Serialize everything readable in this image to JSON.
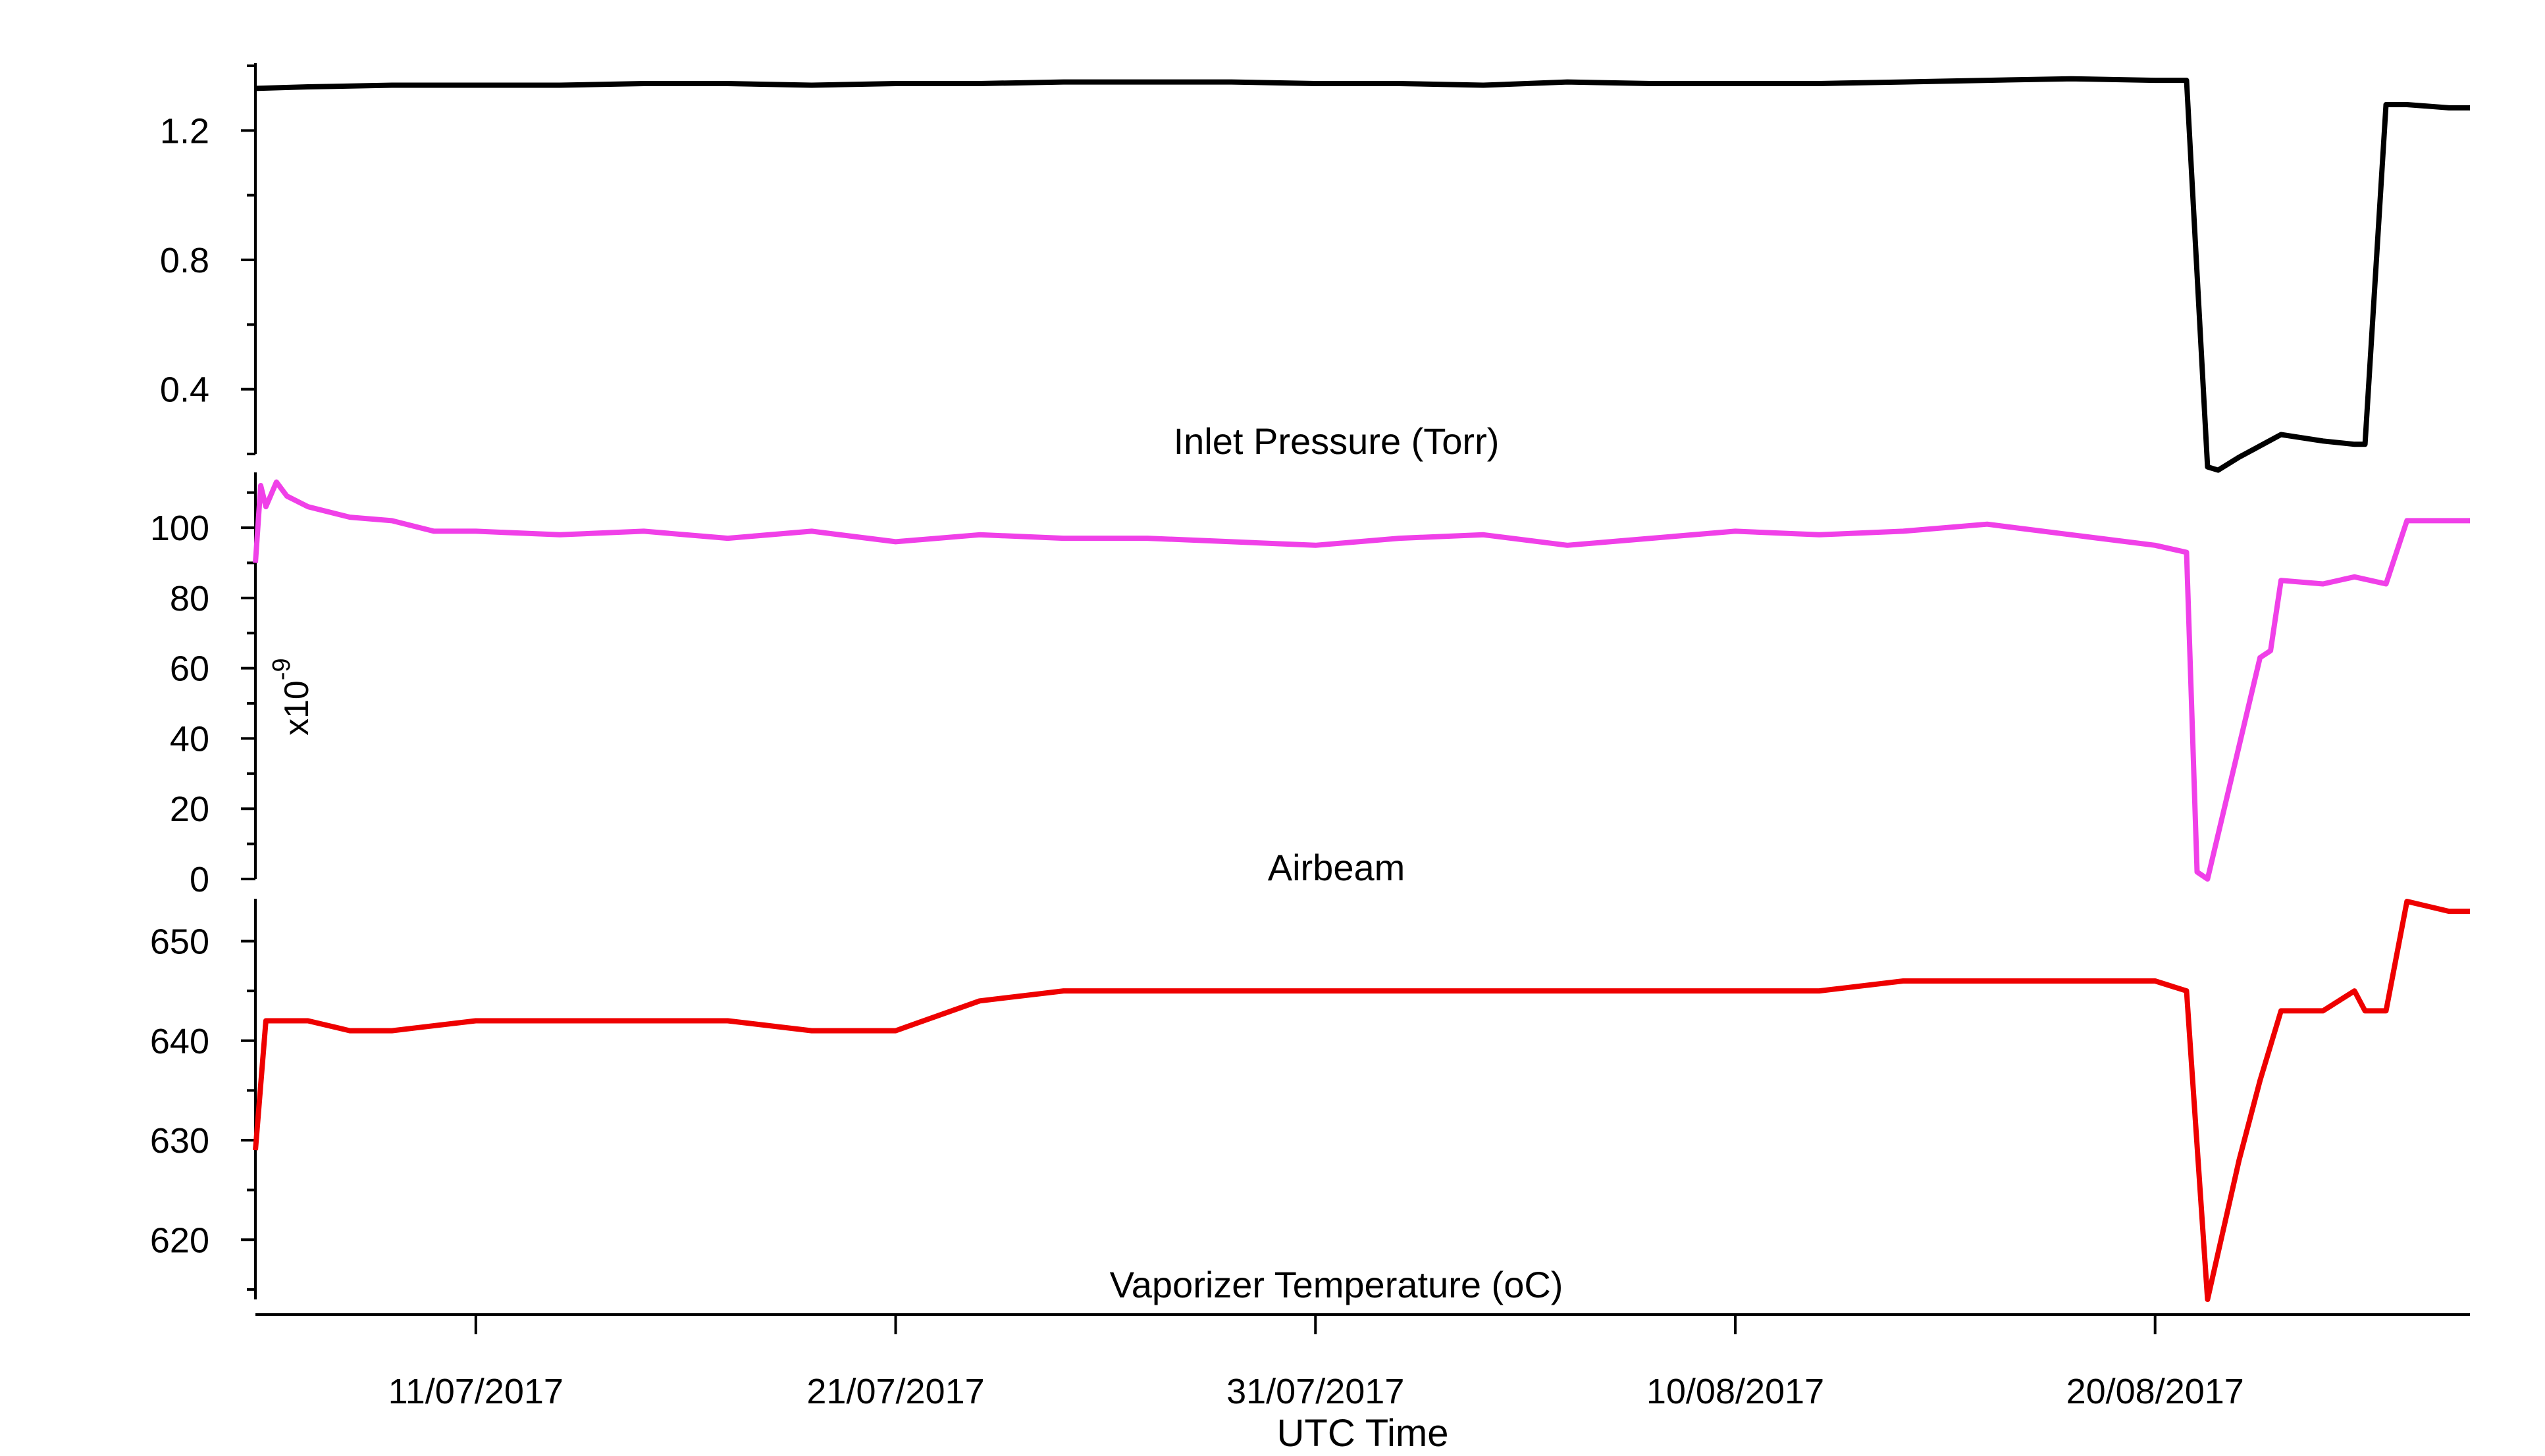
{
  "figure": {
    "xlabel": "UTC Time",
    "x_ticks": [
      "11/07/2017",
      "21/07/2017",
      "31/07/2017",
      "10/08/2017",
      "20/08/2017"
    ],
    "x_range": [
      "2017-07-05T18:00",
      "2017-08-27T12:00"
    ]
  },
  "chart_data": [
    {
      "type": "line",
      "title": "Inlet Pressure (Torr)",
      "xlabel": "",
      "ylabel": "",
      "ylim": [
        0.2,
        1.4
      ],
      "y_ticks": [
        0.4,
        0.8,
        1.2
      ],
      "y_tick_labels": [
        "0.4",
        "0.8",
        "1.2"
      ],
      "y_minor_ticks": [
        0.2,
        0.6,
        1.0,
        1.4
      ],
      "series": [
        {
          "color": "#000000",
          "x": [
            "2017-07-05T18:00",
            "2017-07-07",
            "2017-07-09",
            "2017-07-11",
            "2017-07-13",
            "2017-07-15",
            "2017-07-17",
            "2017-07-19",
            "2017-07-21",
            "2017-07-23",
            "2017-07-25",
            "2017-07-27",
            "2017-07-29",
            "2017-07-31",
            "2017-08-02",
            "2017-08-04",
            "2017-08-06",
            "2017-08-08",
            "2017-08-10",
            "2017-08-12",
            "2017-08-14",
            "2017-08-16",
            "2017-08-18",
            "2017-08-20",
            "2017-08-20T18:00",
            "2017-08-21T06:00",
            "2017-08-21T12:00",
            "2017-08-22",
            "2017-08-23",
            "2017-08-24",
            "2017-08-24T18:00",
            "2017-08-25",
            "2017-08-25T12:00",
            "2017-08-26",
            "2017-08-27",
            "2017-08-27T12:00"
          ],
          "y": [
            1.33,
            1.335,
            1.34,
            1.34,
            1.34,
            1.345,
            1.345,
            1.34,
            1.345,
            1.345,
            1.35,
            1.35,
            1.35,
            1.345,
            1.345,
            1.34,
            1.35,
            1.345,
            1.345,
            1.345,
            1.35,
            1.355,
            1.36,
            1.355,
            1.355,
            0.16,
            0.15,
            0.19,
            0.26,
            0.24,
            0.23,
            0.23,
            1.28,
            1.28,
            1.27,
            1.27
          ]
        }
      ]
    },
    {
      "type": "line",
      "title": "Airbeam",
      "xlabel": "",
      "ylabel": "",
      "y_scale_label": "x10",
      "y_scale_exponent": "-9",
      "ylim": [
        0,
        115
      ],
      "y_ticks": [
        0,
        20,
        40,
        60,
        80,
        100
      ],
      "y_tick_labels": [
        "0",
        "20",
        "40",
        "60",
        "80",
        "100"
      ],
      "y_minor_ticks": [
        10,
        30,
        50,
        70,
        90,
        110
      ],
      "series": [
        {
          "color": "#f040e8",
          "x": [
            "2017-07-05T18:00",
            "2017-07-05T21:00",
            "2017-07-06",
            "2017-07-06T06:00",
            "2017-07-06T12:00",
            "2017-07-07",
            "2017-07-08",
            "2017-07-09",
            "2017-07-10",
            "2017-07-11",
            "2017-07-13",
            "2017-07-15",
            "2017-07-17",
            "2017-07-19",
            "2017-07-21",
            "2017-07-23",
            "2017-07-25",
            "2017-07-27",
            "2017-07-29",
            "2017-07-31",
            "2017-08-02",
            "2017-08-04",
            "2017-08-06",
            "2017-08-08",
            "2017-08-10",
            "2017-08-12",
            "2017-08-14",
            "2017-08-16",
            "2017-08-18",
            "2017-08-20",
            "2017-08-20T18:00",
            "2017-08-21",
            "2017-08-21T06:00",
            "2017-08-22T12:00",
            "2017-08-22T18:00",
            "2017-08-23",
            "2017-08-24",
            "2017-08-24T18:00",
            "2017-08-25T12:00",
            "2017-08-26",
            "2017-08-27T12:00"
          ],
          "y": [
            90,
            112,
            106,
            113,
            109,
            106,
            103,
            102,
            99,
            99,
            98,
            99,
            97,
            99,
            96,
            98,
            97,
            97,
            96,
            95,
            97,
            98,
            95,
            97,
            99,
            98,
            99,
            101,
            98,
            95,
            93,
            2,
            0,
            63,
            65,
            85,
            84,
            86,
            84,
            102,
            102
          ]
        }
      ]
    },
    {
      "type": "line",
      "title": "Vaporizer Temperature (oC)",
      "xlabel": "",
      "ylabel": "",
      "ylim": [
        614,
        654
      ],
      "y_ticks": [
        620,
        630,
        640,
        650
      ],
      "y_tick_labels": [
        "620",
        "630",
        "640",
        "650"
      ],
      "y_minor_ticks": [
        615,
        625,
        635,
        645
      ],
      "series": [
        {
          "color": "#ee0000",
          "x": [
            "2017-07-05T18:00",
            "2017-07-06",
            "2017-07-07",
            "2017-07-08",
            "2017-07-09",
            "2017-07-11",
            "2017-07-13",
            "2017-07-15",
            "2017-07-17",
            "2017-07-19",
            "2017-07-20",
            "2017-07-21",
            "2017-07-23",
            "2017-07-25",
            "2017-07-27",
            "2017-07-29",
            "2017-07-31",
            "2017-08-02",
            "2017-08-04",
            "2017-08-06",
            "2017-08-08",
            "2017-08-10",
            "2017-08-12",
            "2017-08-14",
            "2017-08-16",
            "2017-08-18",
            "2017-08-20",
            "2017-08-20T18:00",
            "2017-08-21T06:00",
            "2017-08-22",
            "2017-08-22T12:00",
            "2017-08-23",
            "2017-08-24",
            "2017-08-24T18:00",
            "2017-08-25",
            "2017-08-25T12:00",
            "2017-08-26",
            "2017-08-27",
            "2017-08-27T12:00"
          ],
          "y": [
            629,
            642,
            642,
            641,
            641,
            642,
            642,
            642,
            642,
            641,
            641,
            641,
            644,
            645,
            645,
            645,
            645,
            645,
            645,
            645,
            645,
            645,
            645,
            646,
            646,
            646,
            646,
            645,
            614,
            628,
            636,
            643,
            643,
            645,
            643,
            643,
            654,
            653,
            653
          ]
        }
      ]
    }
  ]
}
